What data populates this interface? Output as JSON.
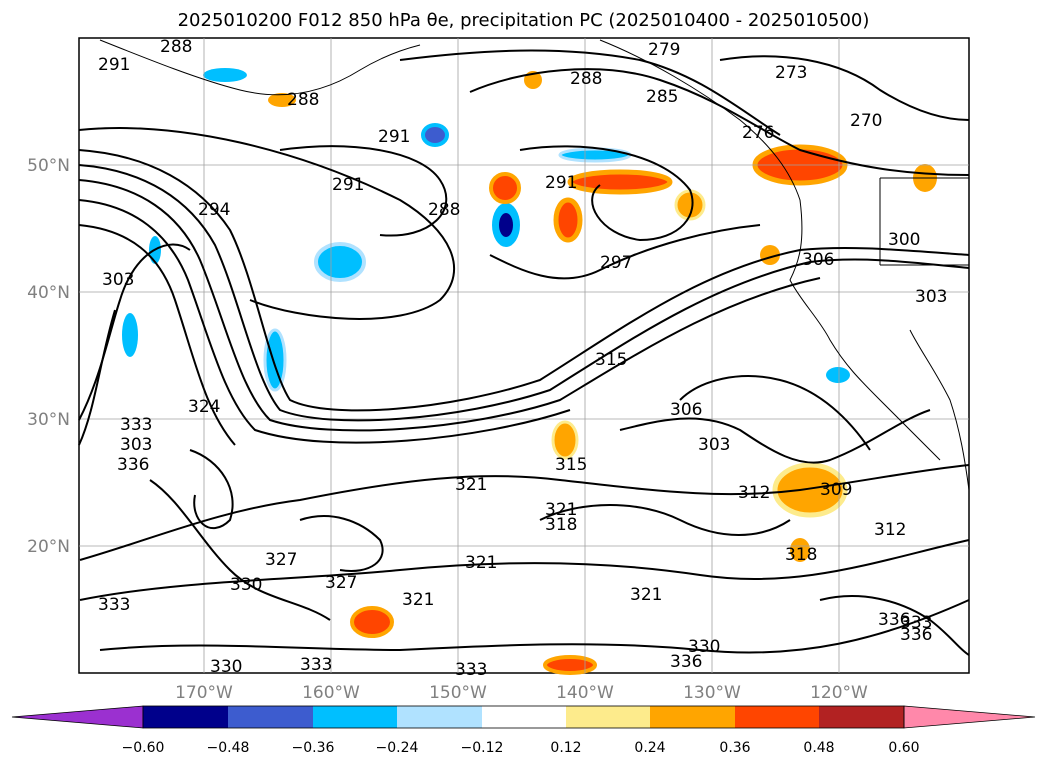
{
  "title": "2025010200 F012 850 hPa θe, precipitation PC (2025010400 - 2025010500)",
  "lat_ticks": [
    "50°N",
    "40°N",
    "30°N",
    "20°N"
  ],
  "lon_ticks": [
    "170°W",
    "160°W",
    "150°W",
    "140°W",
    "130°W",
    "120°W"
  ],
  "contour_labels": [
    "291",
    "288",
    "279",
    "273",
    "288",
    "288",
    "285",
    "276",
    "270",
    "291",
    "291",
    "291",
    "294",
    "288",
    "297",
    "300",
    "303",
    "306",
    "303",
    "303",
    "315",
    "306",
    "303",
    "324",
    "333",
    "336",
    "315",
    "321",
    "321",
    "318",
    "312",
    "309",
    "312",
    "327",
    "321",
    "330",
    "327",
    "321",
    "318",
    "333",
    "330",
    "333",
    "321",
    "333",
    "336",
    "330",
    "333",
    "336",
    "336"
  ],
  "colorbar": {
    "ticks": [
      "−0.60",
      "−0.48",
      "−0.36",
      "−0.24",
      "−0.12",
      "0.12",
      "0.24",
      "0.36",
      "0.48",
      "0.60"
    ],
    "colors": [
      "#9b30d0",
      "#00008b",
      "#3d5ccf",
      "#00bfff",
      "#b0e2ff",
      "#ffffff",
      "#fdeb8c",
      "#ffa500",
      "#ff4500",
      "#b22222",
      "#ff88aa"
    ]
  }
}
